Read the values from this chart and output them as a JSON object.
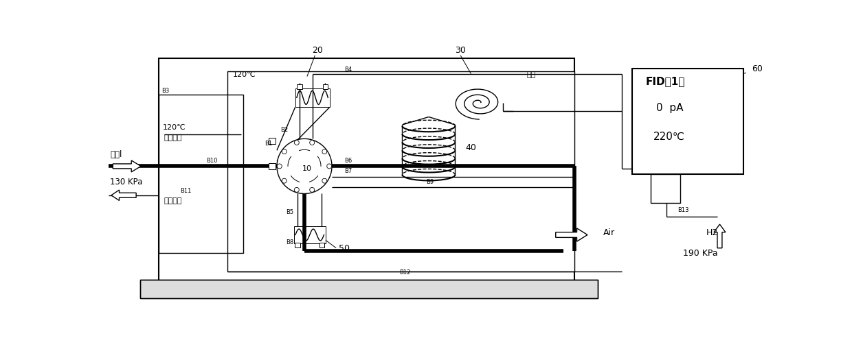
{
  "bg_color": "#ffffff",
  "line_color": "#000000",
  "fig_width": 12.4,
  "fig_height": 4.93,
  "labels": {
    "num_20": "20",
    "num_30": "30",
    "num_10": "10",
    "num_40": "40",
    "num_50": "50",
    "num_60": "60",
    "valve_box": "阀筱",
    "temp_120_top": "120℃",
    "temp_120_left": "120℃",
    "sample_in": "样品入口",
    "sample_out": "样品出口",
    "carrier_gas": "载气l",
    "pressure_130": "130 KPa",
    "fid_title": "FID（1）",
    "fid_0pa": "0  pA",
    "fid_220c": "220℃",
    "air_label": "Air",
    "h2_label": "H2",
    "pressure_190": "190 KPa",
    "b1": "B1",
    "b2": "B2",
    "b3": "B3",
    "b4": "B4",
    "b5": "B5",
    "b6": "B6",
    "b7": "B7",
    "b8": "B8",
    "b9": "B9",
    "b10": "B10",
    "b11": "B11",
    "b12": "B12",
    "b13": "B13"
  }
}
